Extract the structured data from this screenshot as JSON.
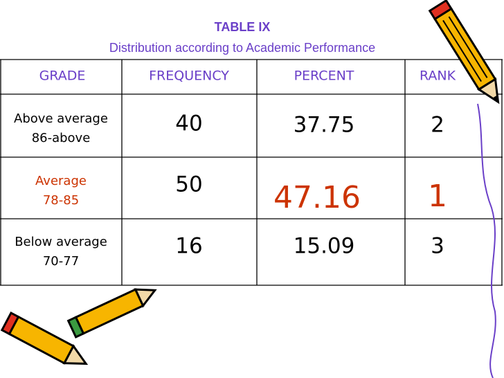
{
  "header": {
    "title": "TABLE IX",
    "subtitle": "Distribution according to Academic Performance"
  },
  "table": {
    "columns": [
      "GRADE",
      "FREQUENCY",
      "PERCENT",
      "RANK"
    ],
    "rows": [
      {
        "grade": [
          "Above average",
          "86-above"
        ],
        "frequency": "40",
        "percent": "37.75",
        "rank": "2"
      },
      {
        "grade": [
          "Average",
          "78-85"
        ],
        "frequency": "50",
        "percent": "47.16",
        "rank": "1"
      },
      {
        "grade": [
          "Below average",
          "70-77"
        ],
        "frequency": "16",
        "percent": "15.09",
        "rank": "3"
      }
    ]
  }
}
